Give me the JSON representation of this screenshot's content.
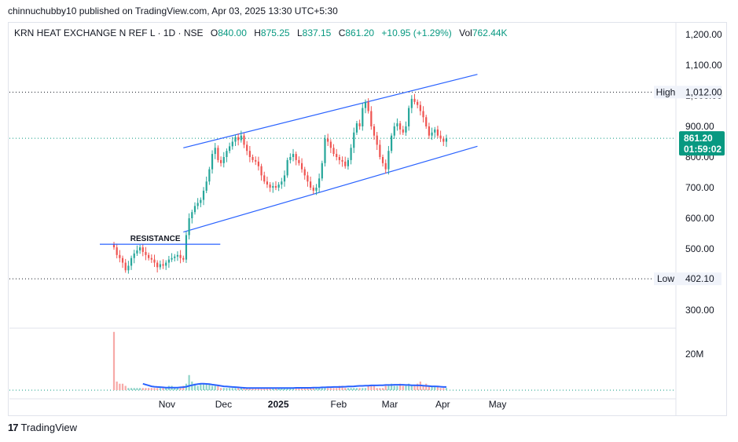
{
  "publisher_line": "chinnuchubby10 published on TradingView.com, Apr 03, 2025 13:30 UTC+5:30",
  "legend": {
    "symbol": "KRN HEAT EXCHANGE N REF L · 1D · NSE",
    "open_label": "O",
    "open": "840.00",
    "high_label": "H",
    "high": "875.25",
    "low_label": "L",
    "low": "837.15",
    "close_label": "C",
    "close": "861.20",
    "change": "+10.95 (+1.29%)",
    "vol_label": "Vol",
    "vol": "762.44K"
  },
  "footer": {
    "brand": "TradingView",
    "logo_glyph": "17"
  },
  "colors": {
    "up": "#26a69a",
    "down": "#ef5350",
    "channel": "#2962ff",
    "volume_ma": "#2962ff",
    "price_line": "#089981",
    "up_volume": "#8fd4c8",
    "down_volume": "#f7a9a7"
  },
  "chart_data": {
    "type": "candlestick",
    "y_axis": {
      "ticks": [
        "1,200.00",
        "1,100.00",
        "1,000.00",
        "900.00",
        "800.00",
        "700.00",
        "600.00",
        "500.00",
        "400.00",
        "300.00"
      ],
      "tick_values": [
        1200,
        1100,
        1000,
        900,
        800,
        700,
        600,
        500,
        400,
        300
      ],
      "range": [
        250,
        1240
      ]
    },
    "volume_axis": {
      "ticks": [
        "20M"
      ],
      "tick_values": [
        20
      ]
    },
    "x_axis": {
      "labels": [
        "Nov",
        "Dec",
        "2025",
        "Feb",
        "Mar",
        "Apr",
        "May"
      ],
      "label_dates": [
        "2024-11-01",
        "2024-12-02",
        "2025-01-01",
        "2025-02-03",
        "2025-03-03",
        "2025-04-01",
        "2025-05-01"
      ]
    },
    "badges": {
      "high": {
        "label": "High",
        "value": "1,012.00",
        "price": 1012
      },
      "low": {
        "label": "Low",
        "value": "402.10",
        "price": 402.1
      },
      "last": {
        "value": "861.20",
        "countdown": "01:59:02",
        "price": 861.2
      }
    },
    "annotations": [
      {
        "type": "horizontal_segment",
        "label": "RESISTANCE",
        "price": 515,
        "from": "2024-10-03",
        "to": "2024-11-13"
      },
      {
        "type": "trend_line",
        "name": "channel-upper",
        "from": [
          "2024-11-10",
          830
        ],
        "to": [
          "2025-04-20",
          1070
        ]
      },
      {
        "type": "trend_line",
        "name": "channel-lower",
        "from": [
          "2024-11-10",
          555
        ],
        "to": [
          "2025-04-20",
          835
        ]
      }
    ],
    "ohlc_closes": [
      505,
      480,
      470,
      455,
      430,
      445,
      470,
      485,
      495,
      505,
      490,
      480,
      470,
      465,
      455,
      440,
      450,
      445,
      455,
      465,
      470,
      475,
      480,
      470,
      465,
      545,
      600,
      620,
      640,
      650,
      660,
      690,
      720,
      760,
      810,
      830,
      790,
      780,
      800,
      820,
      835,
      850,
      865,
      855,
      870,
      840,
      820,
      800,
      790,
      785,
      770,
      740,
      720,
      710,
      700,
      705,
      700,
      710,
      720,
      740,
      790,
      800,
      810,
      790,
      780,
      760,
      740,
      720,
      700,
      690,
      700,
      730,
      780,
      860,
      850,
      830,
      810,
      800,
      790,
      785,
      770,
      790,
      830,
      880,
      910,
      900,
      960,
      980,
      950,
      900,
      870,
      840,
      800,
      780,
      760,
      820,
      870,
      900,
      910,
      890,
      880,
      900,
      960,
      990,
      980,
      970,
      950,
      930,
      900,
      870,
      880,
      890,
      870,
      860,
      850,
      861
    ],
    "start_date": "2024-10-03",
    "volume": [
      27,
      4,
      3,
      3,
      2,
      1,
      1,
      1,
      1,
      1,
      1,
      1,
      1,
      1,
      1,
      1,
      1,
      1,
      1,
      2,
      2,
      1,
      1,
      1,
      2,
      3,
      7,
      4,
      3,
      2,
      3,
      3,
      3,
      3,
      2,
      2,
      2,
      1,
      1,
      1,
      1,
      1,
      1,
      1,
      1,
      1,
      1,
      1,
      1,
      1,
      1,
      1,
      1,
      1,
      1,
      1,
      1,
      1,
      1,
      1,
      1,
      1,
      1,
      1,
      1,
      1,
      1,
      1,
      1,
      1,
      1,
      1,
      1,
      1,
      1,
      1,
      1,
      1,
      2,
      2,
      1,
      1,
      1,
      1,
      1,
      1,
      1,
      1,
      2,
      2,
      2,
      1,
      1,
      1,
      2,
      2,
      3,
      2,
      2,
      3,
      2,
      2,
      3,
      2,
      2,
      3,
      4,
      2,
      3,
      2,
      2,
      2,
      2,
      1,
      1,
      1
    ],
    "volume_ma": [
      null,
      null,
      null,
      null,
      null,
      null,
      null,
      null,
      null,
      null,
      3,
      2.6,
      2.2,
      1.8,
      1.6,
      1.5,
      1.4,
      1.3,
      1.2,
      1.2,
      1.2,
      1.2,
      1.2,
      1.3,
      1.4,
      1.6,
      2.0,
      2.3,
      2.6,
      2.8,
      3.0,
      3.0,
      2.9,
      2.8,
      2.6,
      2.4,
      2.2,
      2.0,
      1.8,
      1.7,
      1.6,
      1.5,
      1.4,
      1.3,
      1.2,
      1.1,
      1.0,
      1.0,
      1.0,
      1.0,
      1.0,
      1.0,
      1.0,
      1.0,
      1.0,
      1.0,
      1.0,
      1.0,
      1.0,
      1.0,
      1.0,
      1.0,
      1.0,
      1.1,
      1.1,
      1.1,
      1.1,
      1.1,
      1.1,
      1.2,
      1.2,
      1.2,
      1.3,
      1.3,
      1.4,
      1.4,
      1.5,
      1.5,
      1.5,
      1.6,
      1.6,
      1.7,
      1.7,
      1.8,
      1.9,
      2.0,
      2.0,
      2.1,
      2.1,
      2.2,
      2.2,
      2.2,
      2.3,
      2.3,
      2.4,
      2.4,
      2.4,
      2.5,
      2.5,
      2.5,
      2.5,
      2.4,
      2.4,
      2.3,
      2.3,
      2.2,
      2.2,
      2.1,
      2.0,
      1.9,
      1.8,
      1.8,
      1.7,
      1.6,
      1.5,
      1.5
    ]
  }
}
